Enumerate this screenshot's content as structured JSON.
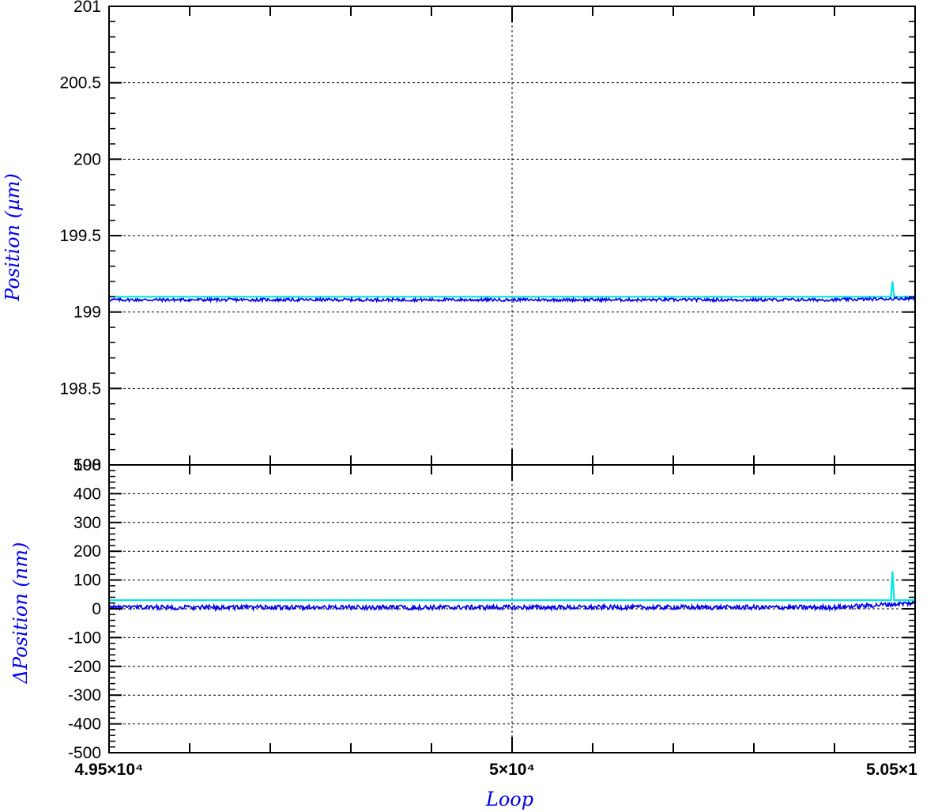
{
  "chart_data": [
    {
      "type": "line",
      "panel": "top",
      "ylabel": "Position (µm)",
      "xlim": [
        49500,
        50500
      ],
      "ylim": [
        198,
        201
      ],
      "yticks": [
        {
          "value": 201,
          "label": "201"
        },
        {
          "value": 200.5,
          "label": "200.5"
        },
        {
          "value": 200,
          "label": "200"
        },
        {
          "value": 199.5,
          "label": "199.5"
        },
        {
          "value": 199,
          "label": "199"
        },
        {
          "value": 198.5,
          "label": "198.5"
        },
        {
          "value": 198,
          "label": "198"
        }
      ],
      "grid": true,
      "series": [
        {
          "color": "#00e5e5",
          "kind": "reference",
          "baseline": 199.1,
          "spikes": [
            {
              "x": 50472,
              "y": 199.2
            }
          ]
        },
        {
          "color": "#0000ee",
          "kind": "measured",
          "baseline": 199.08,
          "noise": 0.01,
          "end_value": 199.09
        }
      ]
    },
    {
      "type": "line",
      "panel": "bottom",
      "ylabel": "ΔPosition (nm)",
      "xlabel": "Loop",
      "xlim": [
        49500,
        50500
      ],
      "ylim": [
        -500,
        500
      ],
      "yticks": [
        {
          "value": 500,
          "label": "500"
        },
        {
          "value": 400,
          "label": "400"
        },
        {
          "value": 300,
          "label": "300"
        },
        {
          "value": 200,
          "label": "200"
        },
        {
          "value": 100,
          "label": "100"
        },
        {
          "value": 0,
          "label": "0"
        },
        {
          "value": -100,
          "label": "-100"
        },
        {
          "value": -200,
          "label": "-200"
        },
        {
          "value": -300,
          "label": "-300"
        },
        {
          "value": -400,
          "label": "-400"
        },
        {
          "value": -500,
          "label": "-500"
        }
      ],
      "xticks": [
        {
          "value": 49500,
          "label": "4.95×10⁴"
        },
        {
          "value": 50000,
          "label": "5×10⁴"
        },
        {
          "value": 50500,
          "label": "5.05×1"
        }
      ],
      "grid": true,
      "series": [
        {
          "color": "#00e5e5",
          "kind": "reference",
          "baseline": 30,
          "spikes": [
            {
              "x": 50472,
              "y": 130
            }
          ]
        },
        {
          "color": "#0000ee",
          "kind": "measured",
          "baseline": 5,
          "noise": 8,
          "end_value": 20
        }
      ]
    }
  ]
}
